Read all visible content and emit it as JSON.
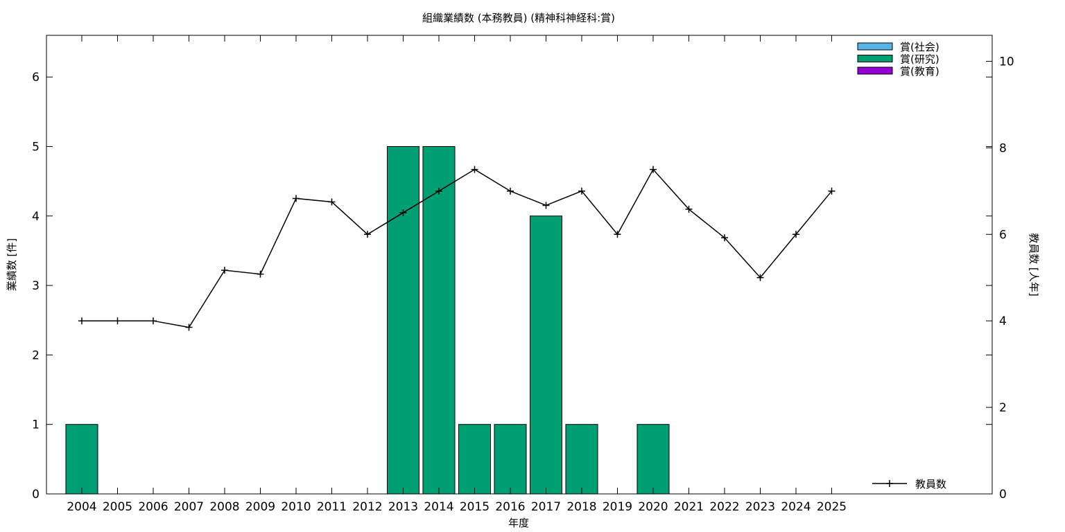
{
  "chart_data": {
    "type": "bar",
    "title": "組織業績数 (本務教員) (精神科神経科:賞)",
    "xlabel": "年度",
    "ylabel": "業績数 [件]",
    "y2label": "教員数 [人年]",
    "categories": [
      "2004",
      "2005",
      "2006",
      "2007",
      "2008",
      "2009",
      "2010",
      "2011",
      "2012",
      "2013",
      "2014",
      "2015",
      "2016",
      "2017",
      "2018",
      "2019",
      "2020",
      "2021",
      "2022",
      "2023",
      "2024",
      "2025"
    ],
    "ylim": [
      0,
      6.6
    ],
    "yticks": [
      0,
      1,
      2,
      3,
      4,
      5,
      6
    ],
    "y2lim": [
      0,
      10.6
    ],
    "y2ticks": [
      0,
      2,
      4,
      6,
      8,
      10
    ],
    "series": [
      {
        "name": "賞(社会)",
        "color": "#56b4e9",
        "values": [
          0,
          0,
          0,
          0,
          0,
          0,
          0,
          0,
          0,
          0,
          0,
          0,
          0,
          0,
          0,
          0,
          0,
          0,
          0,
          0,
          0,
          0
        ]
      },
      {
        "name": "賞(研究)",
        "color": "#009e73",
        "values": [
          1,
          0,
          0,
          0,
          0,
          0,
          0,
          0,
          0,
          5,
          5,
          1,
          1,
          4,
          1,
          0,
          1,
          0,
          0,
          0,
          0,
          0
        ]
      },
      {
        "name": "賞(教育)",
        "color": "#9400d3",
        "values": [
          0,
          0,
          0,
          0,
          0,
          0,
          0,
          0,
          0,
          0,
          0,
          0,
          0,
          0,
          0,
          0,
          0,
          0,
          0,
          0,
          0,
          0
        ]
      }
    ],
    "line_series": {
      "name": "教員数",
      "axis": "right",
      "color": "#000000",
      "values": [
        4.0,
        4.0,
        4.0,
        3.85,
        5.17,
        5.08,
        6.83,
        6.75,
        6.0,
        6.5,
        7.0,
        7.5,
        7.0,
        6.67,
        7.0,
        6.0,
        7.5,
        6.58,
        5.92,
        5.0,
        6.0,
        7.0
      ]
    },
    "legend_bars_position": "top-right",
    "legend_line_position": "bottom-right",
    "grid": false
  }
}
